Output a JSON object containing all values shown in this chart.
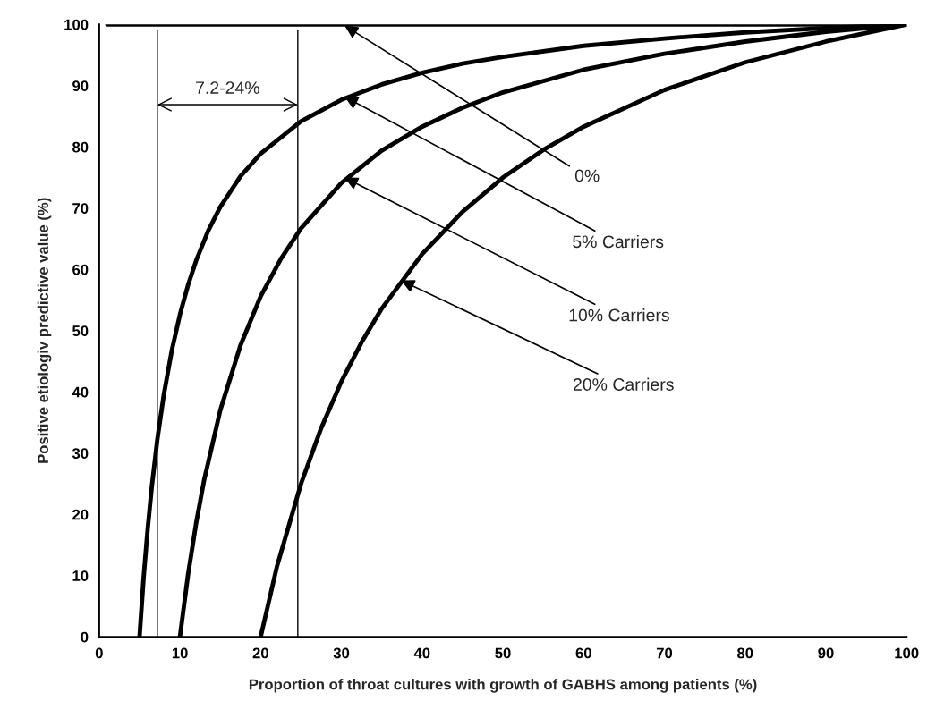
{
  "chart_data": {
    "type": "line",
    "xlabel": "Proportion of throat cultures with growth of GABHS among patients (%)",
    "ylabel": "Positive etiologiv predictive value (%)",
    "xlim": [
      0,
      100
    ],
    "ylim": [
      0,
      100
    ],
    "xticks": [
      0,
      10,
      20,
      30,
      40,
      50,
      60,
      70,
      80,
      90,
      100
    ],
    "yticks": [
      0,
      10,
      20,
      30,
      40,
      50,
      60,
      70,
      80,
      90,
      100
    ],
    "grid": false,
    "marker": "none",
    "line_style": "solid",
    "series": [
      {
        "color": "#000000",
        "x": [
          1,
          100
        ],
        "values": [
          100,
          100
        ]
      },
      {
        "color": "#000000",
        "x": [
          5,
          5.5,
          6,
          6.5,
          7.2,
          8,
          9,
          10,
          11,
          12,
          13.5,
          15,
          17.5,
          20,
          25,
          30,
          35,
          40,
          45,
          50,
          60,
          70,
          80,
          90,
          100
        ],
        "values": [
          0,
          9.6,
          17.5,
          24.3,
          32.2,
          39.5,
          46.8,
          52.6,
          57.4,
          61.4,
          66.3,
          70.2,
          75.2,
          78.9,
          84.2,
          87.7,
          90.2,
          92.1,
          93.6,
          94.7,
          96.5,
          97.7,
          98.7,
          99.4,
          100
        ]
      },
      {
        "color": "#000000",
        "x": [
          10,
          11,
          12,
          13,
          15,
          17.5,
          20,
          22.5,
          25,
          30,
          35,
          40,
          45,
          50,
          60,
          70,
          80,
          90,
          100
        ],
        "values": [
          0,
          10.1,
          18.5,
          25.6,
          37.0,
          47.6,
          55.6,
          61.7,
          66.7,
          74.1,
          79.4,
          83.3,
          86.4,
          88.9,
          92.6,
          95.2,
          97.2,
          98.8,
          100
        ]
      },
      {
        "color": "#000000",
        "x": [
          20,
          22,
          25,
          27.5,
          30,
          32.5,
          35,
          40,
          45,
          50,
          55,
          60,
          70,
          80,
          90,
          100
        ],
        "values": [
          0,
          11.4,
          25,
          34.1,
          41.7,
          48.1,
          53.6,
          62.5,
          69.4,
          75,
          79.5,
          83.3,
          89.3,
          93.8,
          97.2,
          100
        ]
      }
    ],
    "ref_lines": [
      {
        "axis": "x",
        "value": 7.2,
        "color": "#000000"
      },
      {
        "axis": "x",
        "value": 24.6,
        "color": "#000000"
      }
    ],
    "annotations": [
      {
        "text": "0%",
        "x": 30.4,
        "y": 99.8
      },
      {
        "text": "5% Carriers",
        "x": 30.4,
        "y": 88.2
      },
      {
        "text": "10% Carriers",
        "x": 30.4,
        "y": 75.0
      },
      {
        "text": "20% Carriers",
        "x": 37.4,
        "y": 58.2
      },
      {
        "text": "7.2-24%",
        "x": 7.2,
        "y": 86.9
      }
    ]
  }
}
